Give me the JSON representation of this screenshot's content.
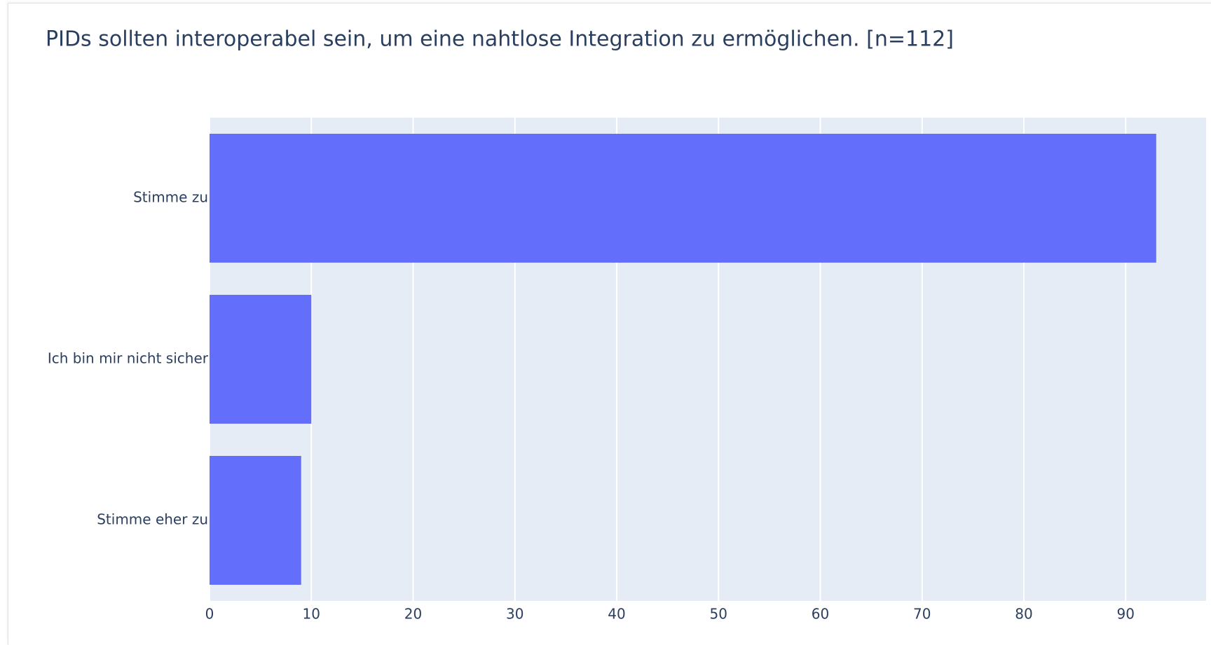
{
  "chart_data": {
    "type": "bar",
    "orientation": "horizontal",
    "title": "PIDs sollten interoperabel sein, um eine nahtlose Integration zu ermöglichen. [n=112]",
    "categories": [
      "Stimme zu",
      "Ich bin mir nicht sicher",
      "Stimme eher zu"
    ],
    "values": [
      93,
      10,
      9
    ],
    "color": "#636efa",
    "xlim": [
      0,
      97.9
    ],
    "xticks": [
      0,
      10,
      20,
      30,
      40,
      50,
      60,
      70,
      80,
      90
    ],
    "grid": true
  }
}
